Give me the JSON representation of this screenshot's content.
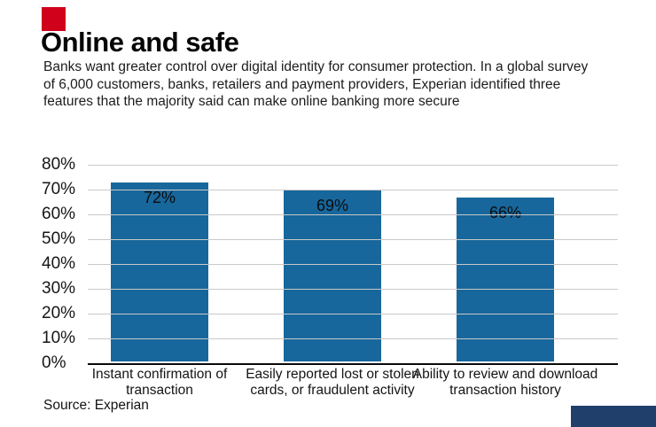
{
  "header": {
    "title": "Online and safe",
    "description": "Banks want greater control over digital identity for consumer protection. In a global survey of 6,000 customers, banks, retailers and payment providers, Experian identified three features that the majority said can make online banking more secure"
  },
  "accent_colors": {
    "brand_red": "#d0021b",
    "bar_blue": "#17679c",
    "footer_navy": "#20406b"
  },
  "chart_data": {
    "type": "bar",
    "title": "Online and safe",
    "categories": [
      "Instant confirmation of transaction",
      "Easily reported lost or stolen cards, or fraudulent activity",
      "Ability to review and download transaction history"
    ],
    "values": [
      72,
      69,
      66
    ],
    "value_labels": [
      "72%",
      "69%",
      "66%"
    ],
    "xlabel": "",
    "ylabel": "",
    "ylim": [
      0,
      80
    ],
    "yticks": [
      "80%",
      "70%",
      "60%",
      "50%",
      "40%",
      "30%",
      "20%",
      "10%",
      "0%"
    ],
    "grid": true,
    "legend": "none"
  },
  "footer": {
    "source": "Source: Experian"
  }
}
